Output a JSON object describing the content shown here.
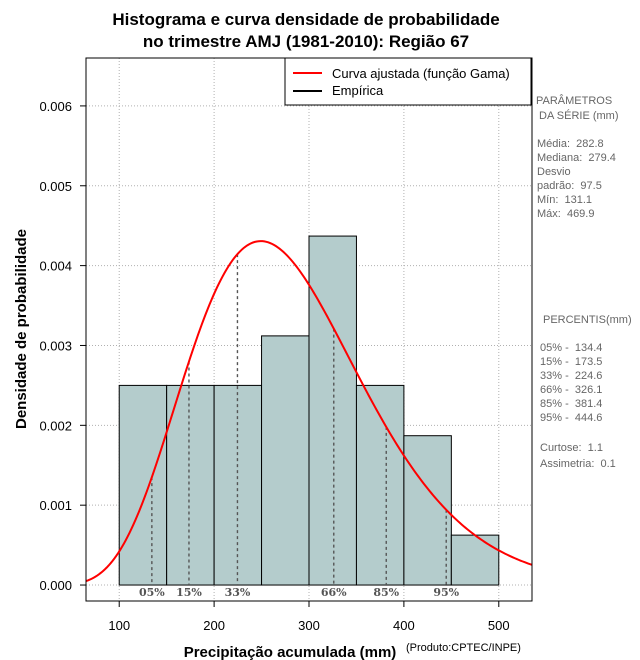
{
  "chart_data": {
    "type": "histogram",
    "title_lines": [
      "Histograma e curva densidade de probabilidade",
      "no trimestre AMJ (1981-2010): Região 67"
    ],
    "xlabel": "Precipitação acumulada (mm)",
    "ylabel": "Densidade de probabilidade",
    "credit": "(Produto:CPTEC/INPE)",
    "xlim": [
      65,
      535
    ],
    "ylim": [
      -0.0002,
      0.0066
    ],
    "xticks": [
      100,
      200,
      300,
      400,
      500
    ],
    "yticks": [
      0.0,
      0.001,
      0.002,
      0.003,
      0.004,
      0.005,
      0.006
    ],
    "ytick_labels": [
      "0.000",
      "0.001",
      "0.002",
      "0.003",
      "0.004",
      "0.005",
      "0.006"
    ],
    "bins": [
      {
        "from": 100,
        "to": 150,
        "density": 0.0025
      },
      {
        "from": 150,
        "to": 200,
        "density": 0.0025
      },
      {
        "from": 200,
        "to": 250,
        "density": 0.0025
      },
      {
        "from": 250,
        "to": 300,
        "density": 0.00312
      },
      {
        "from": 300,
        "to": 350,
        "density": 0.00437
      },
      {
        "from": 350,
        "to": 400,
        "density": 0.0025
      },
      {
        "from": 400,
        "to": 450,
        "density": 0.00187
      },
      {
        "from": 450,
        "to": 500,
        "density": 0.000625
      }
    ],
    "gamma_fit": {
      "shape": 8.4,
      "scale": 33.67,
      "color": "#ff0000"
    },
    "percentile_lines": [
      {
        "label": "05%",
        "x": 134.4
      },
      {
        "label": "15%",
        "x": 173.5
      },
      {
        "label": "33%",
        "x": 224.6
      },
      {
        "label": "66%",
        "x": 326.1
      },
      {
        "label": "85%",
        "x": 381.4
      },
      {
        "label": "95%",
        "x": 444.6
      }
    ],
    "legend": [
      {
        "label": "Curva ajustada (função Gama)",
        "color": "#ff0000"
      },
      {
        "label": "Empírica",
        "color": "#000000"
      }
    ],
    "bar_color": "#b4cccc",
    "grid": true
  },
  "side_panel": {
    "parametros": {
      "header_lines": [
        "PARÂMETROS",
        " DA SÉRIE (mm)"
      ],
      "lines": [
        "Média:  282.8",
        "Mediana:  279.4",
        "Desvio",
        "padrão:  97.5",
        "Mín:  131.1",
        "Máx:  469.9"
      ]
    },
    "percentis": {
      "header": "PERCENTIS(mm)",
      "lines": [
        "05% -  134.4",
        "15% -  173.5",
        "33% -  224.6",
        "66% -  326.1",
        "85% -  381.4",
        "95% -  444.6"
      ]
    },
    "stats": [
      "Curtose:  1.1",
      "Assimetria:  0.1"
    ]
  }
}
